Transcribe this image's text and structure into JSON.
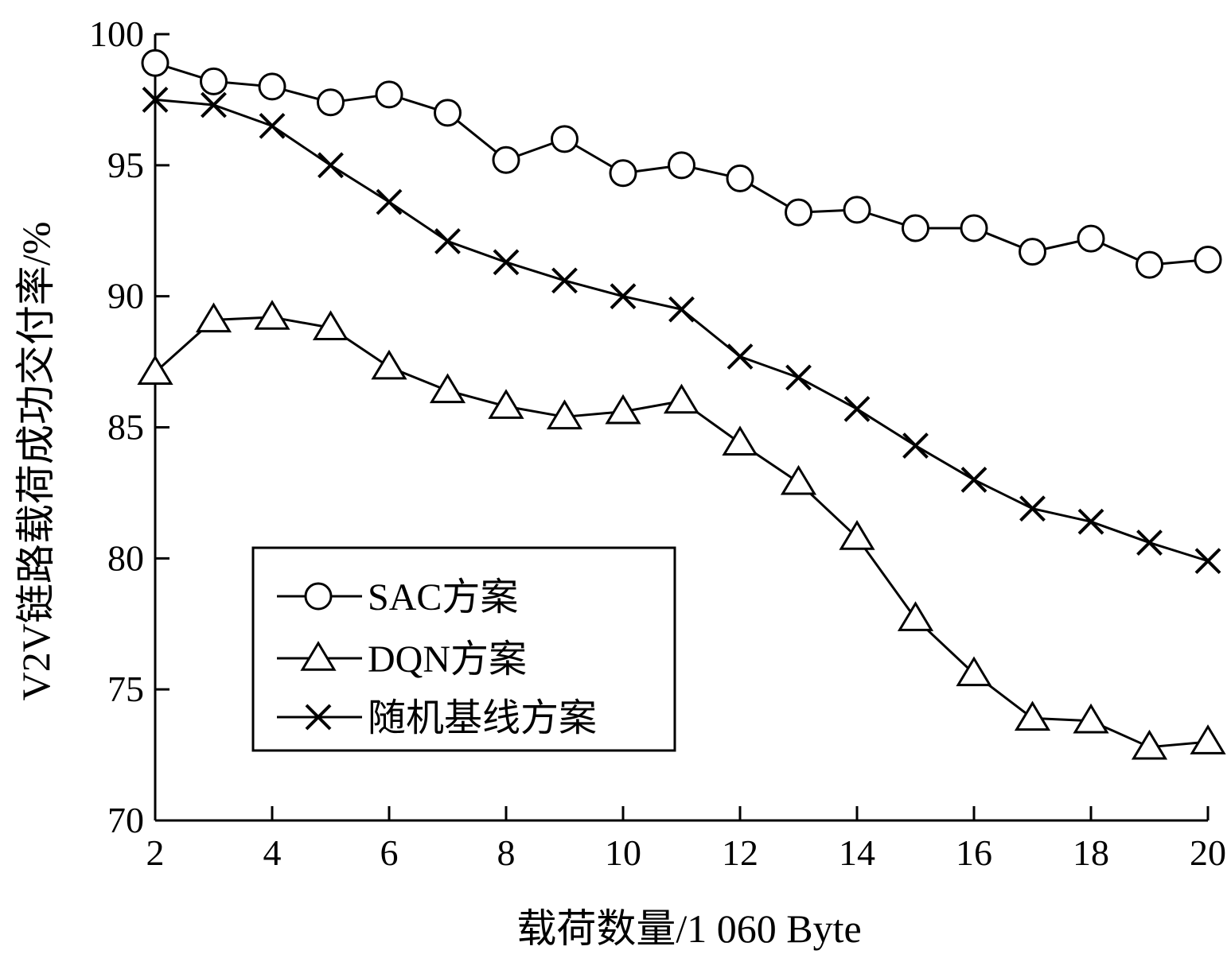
{
  "chart_data": {
    "type": "line",
    "title": "",
    "xlabel": "载荷数量/1 060 Byte",
    "ylabel": "V2V链路载荷成功交付率/%",
    "xlim": [
      2,
      20
    ],
    "ylim": [
      70,
      100
    ],
    "x_ticks": [
      2,
      4,
      6,
      8,
      10,
      12,
      14,
      16,
      18,
      20
    ],
    "y_ticks": [
      70,
      75,
      80,
      85,
      90,
      95,
      100
    ],
    "grid": false,
    "legend_position": "lower-left",
    "x": [
      2,
      3,
      4,
      5,
      6,
      7,
      8,
      9,
      10,
      11,
      12,
      13,
      14,
      15,
      16,
      17,
      18,
      19,
      20
    ],
    "series": [
      {
        "name": "SAC方案",
        "marker": "circle",
        "values": [
          98.9,
          98.2,
          98.0,
          97.4,
          97.7,
          97.0,
          95.2,
          96.0,
          94.7,
          95.0,
          94.5,
          93.2,
          93.3,
          92.6,
          92.6,
          91.7,
          92.2,
          91.2,
          91.4
        ]
      },
      {
        "name": "DQN方案",
        "marker": "triangle",
        "values": [
          87.1,
          89.1,
          89.2,
          88.8,
          87.3,
          86.4,
          85.8,
          85.4,
          85.6,
          86.0,
          84.4,
          82.9,
          80.8,
          77.7,
          75.6,
          73.9,
          73.8,
          72.8,
          73.0
        ]
      },
      {
        "name": "随机基线方案",
        "marker": "x",
        "values": [
          97.5,
          97.3,
          96.5,
          95.0,
          93.6,
          92.1,
          91.3,
          90.6,
          90.0,
          89.5,
          87.7,
          86.9,
          85.7,
          84.3,
          83.0,
          81.9,
          81.4,
          80.6,
          79.9
        ]
      }
    ]
  },
  "colors": {
    "line": "#000000",
    "background": "#ffffff"
  }
}
